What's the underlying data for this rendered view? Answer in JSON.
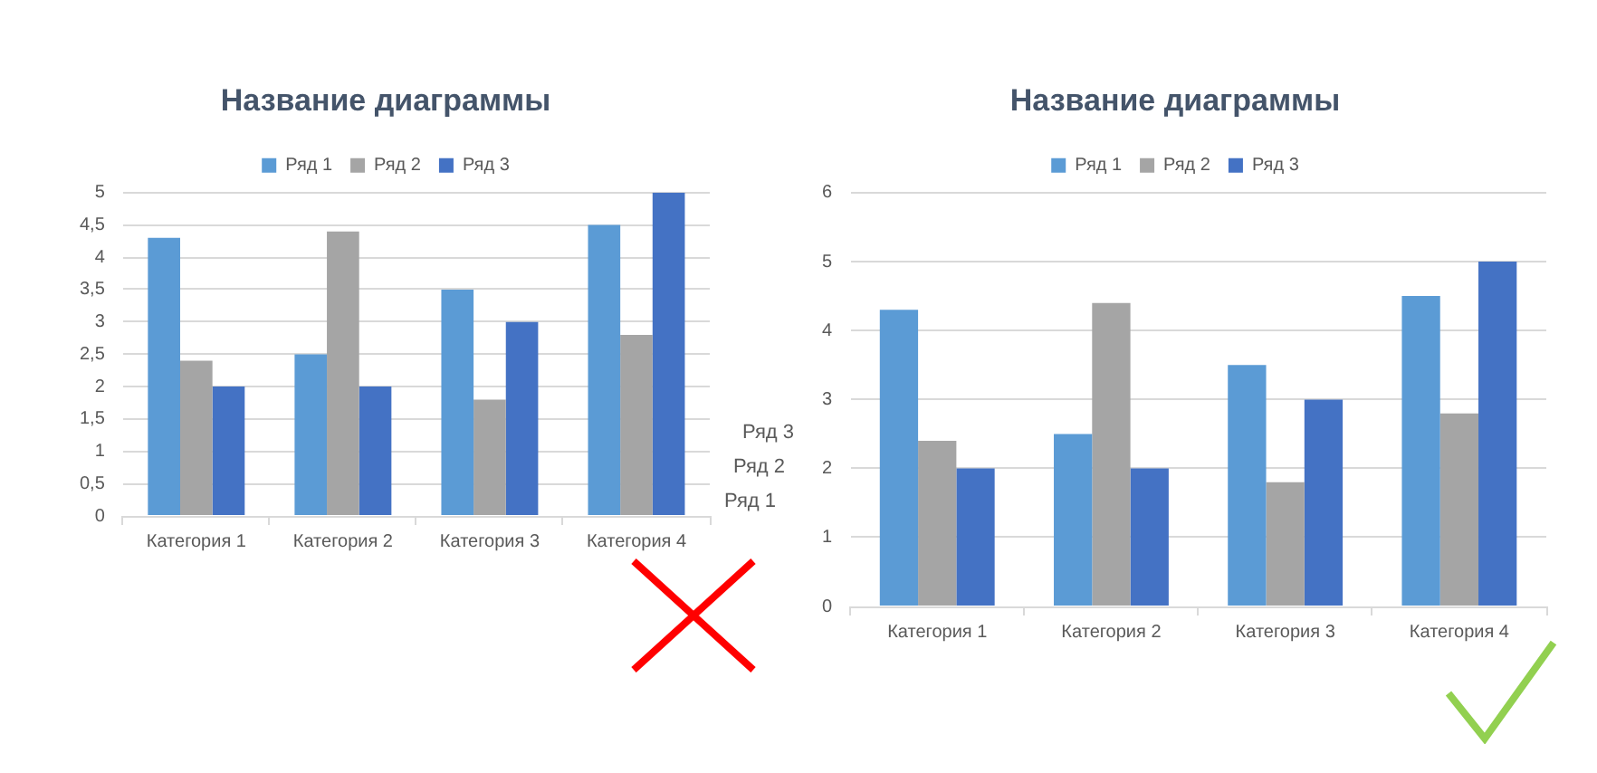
{
  "chart_data": [
    {
      "type": "bar",
      "title": "Название диаграммы",
      "categories": [
        "Категория 1",
        "Категория 2",
        "Категория 3",
        "Категория 4"
      ],
      "series": [
        {
          "name": "Ряд 1",
          "color": "#5b9bd5",
          "values": [
            4.3,
            2.5,
            3.5,
            4.5
          ]
        },
        {
          "name": "Ряд 2",
          "color": "#a5a5a5",
          "values": [
            2.4,
            4.4,
            1.8,
            2.8
          ]
        },
        {
          "name": "Ряд 3",
          "color": "#4472c4",
          "values": [
            2,
            2,
            3,
            5
          ]
        }
      ],
      "ylim": [
        0,
        5
      ],
      "yticks": [
        0,
        {
          "value": 0.5,
          "label": "0,5"
        },
        1,
        {
          "value": 1.5,
          "label": "1,5"
        },
        2,
        {
          "value": 2.5,
          "label": "2,5"
        },
        3,
        {
          "value": 3.5,
          "label": "3,5"
        },
        4,
        {
          "value": 4.5,
          "label": "4,5"
        },
        5
      ],
      "grid": "y",
      "legend": "top",
      "annotations": [
        "Ряд 3",
        "Ряд 2",
        "Ряд 1"
      ]
    },
    {
      "type": "bar",
      "title": "Название диаграммы",
      "categories": [
        "Категория 1",
        "Категория 2",
        "Категория 3",
        "Категория 4"
      ],
      "series": [
        {
          "name": "Ряд 1",
          "color": "#5b9bd5",
          "values": [
            4.3,
            2.5,
            3.5,
            4.5
          ]
        },
        {
          "name": "Ряд 2",
          "color": "#a5a5a5",
          "values": [
            2.4,
            4.4,
            1.8,
            2.8
          ]
        },
        {
          "name": "Ряд 3",
          "color": "#4472c4",
          "values": [
            2,
            2,
            3,
            5
          ]
        }
      ],
      "ylim": [
        0,
        6
      ],
      "yticks": [
        0,
        1,
        2,
        3,
        4,
        5,
        6
      ],
      "grid": "y",
      "legend": "top"
    }
  ]
}
